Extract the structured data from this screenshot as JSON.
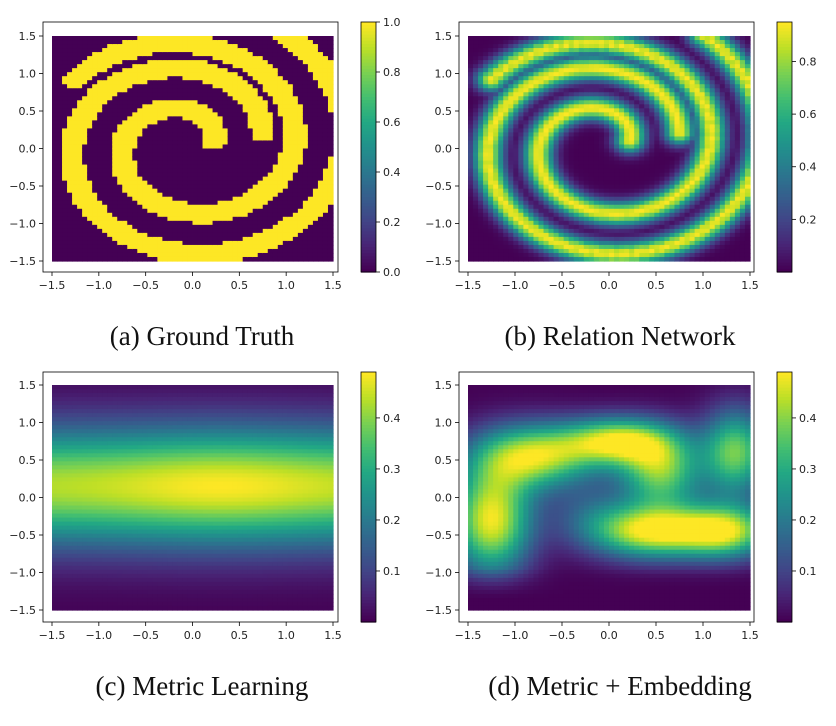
{
  "chart_data": [
    {
      "type": "heatmap",
      "caption": "(a) Ground Truth",
      "field": "spiral_binary",
      "xlim": [
        -1.5,
        1.5
      ],
      "ylim": [
        -1.5,
        1.5
      ],
      "x_ticks": [
        "-1.5",
        "-1.0",
        "-0.5",
        "0.0",
        "0.5",
        "1.0",
        "1.5"
      ],
      "y_ticks": [
        "1.5",
        "1.0",
        "0.5",
        "0.0",
        "-0.5",
        "-1.0",
        "-1.5"
      ],
      "colorbar": {
        "min": 0.0,
        "max": 1.0,
        "ticks": [
          "1.0",
          "0.8",
          "0.6",
          "0.4",
          "0.2",
          "0.0"
        ],
        "colormap": "viridis"
      }
    },
    {
      "type": "heatmap",
      "caption": "(b) Relation Network",
      "field": "spiral_soft",
      "xlim": [
        -1.5,
        1.5
      ],
      "ylim": [
        -1.5,
        1.5
      ],
      "x_ticks": [
        "-1.5",
        "-1.0",
        "-0.5",
        "0.0",
        "0.5",
        "1.0",
        "1.5"
      ],
      "y_ticks": [
        "1.5",
        "1.0",
        "0.5",
        "0.0",
        "-0.5",
        "-1.0",
        "-1.5"
      ],
      "colorbar": {
        "min": 0.0,
        "max": 0.95,
        "ticks": [
          "0.8",
          "0.6",
          "0.4",
          "0.2"
        ],
        "colormap": "viridis"
      }
    },
    {
      "type": "heatmap",
      "caption": "(c) Metric Learning",
      "field": "horizontal_band",
      "xlim": [
        -1.5,
        1.5
      ],
      "ylim": [
        -1.5,
        1.5
      ],
      "x_ticks": [
        "-1.5",
        "-1.0",
        "-0.5",
        "0.0",
        "0.5",
        "1.0",
        "1.5"
      ],
      "y_ticks": [
        "1.5",
        "1.0",
        "0.5",
        "0.0",
        "-0.5",
        "-1.0",
        "-1.5"
      ],
      "colorbar": {
        "min": 0.0,
        "max": 0.49,
        "ticks": [
          "0.4",
          "0.3",
          "0.2",
          "0.1"
        ],
        "colormap": "viridis"
      }
    },
    {
      "type": "heatmap",
      "caption": "(d) Metric + Embedding",
      "field": "wave_pattern",
      "xlim": [
        -1.5,
        1.5
      ],
      "ylim": [
        -1.5,
        1.5
      ],
      "x_ticks": [
        "-1.5",
        "-1.0",
        "-0.5",
        "0.0",
        "0.5",
        "1.0",
        "1.5"
      ],
      "y_ticks": [
        "1.5",
        "1.0",
        "0.5",
        "0.0",
        "-0.5",
        "-1.0",
        "-1.5"
      ],
      "colorbar": {
        "min": 0.0,
        "max": 0.49,
        "ticks": [
          "0.4",
          "0.3",
          "0.2",
          "0.1"
        ],
        "colormap": "viridis"
      }
    }
  ]
}
